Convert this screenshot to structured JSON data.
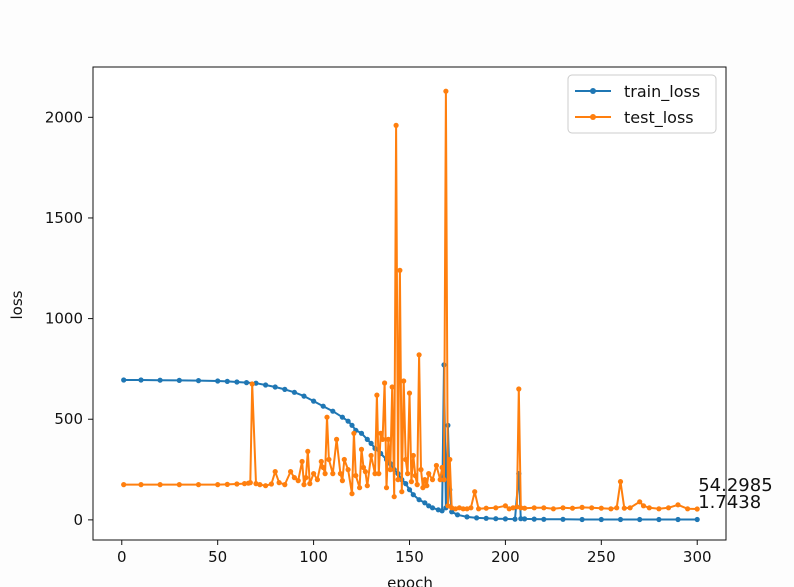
{
  "chart_data": {
    "type": "line",
    "xlabel": "epoch",
    "ylabel": "loss",
    "xlim": [
      -15,
      315
    ],
    "ylim": [
      -100,
      2250
    ],
    "xticks": [
      0,
      50,
      100,
      150,
      200,
      250,
      300
    ],
    "yticks": [
      0,
      500,
      1000,
      1500,
      2000
    ],
    "legend_position": "upper right",
    "series": [
      {
        "name": "train_loss",
        "color": "#1f77b4",
        "end_label": "1.7438",
        "x": [
          1,
          10,
          20,
          30,
          40,
          50,
          55,
          60,
          65,
          70,
          75,
          80,
          85,
          90,
          95,
          100,
          105,
          110,
          115,
          118,
          120,
          122,
          125,
          128,
          130,
          132,
          135,
          138,
          140,
          142,
          144,
          146,
          148,
          150,
          152,
          155,
          158,
          160,
          162,
          165,
          167,
          168,
          169,
          170,
          171,
          172,
          175,
          180,
          185,
          190,
          195,
          200,
          205,
          207,
          208,
          210,
          215,
          220,
          230,
          240,
          250,
          260,
          270,
          280,
          290,
          300
        ],
        "y": [
          695,
          695,
          694,
          693,
          692,
          690,
          688,
          685,
          682,
          679,
          670,
          660,
          648,
          634,
          615,
          590,
          565,
          540,
          510,
          490,
          470,
          445,
          430,
          400,
          380,
          355,
          330,
          300,
          280,
          250,
          230,
          200,
          180,
          150,
          125,
          100,
          85,
          70,
          60,
          50,
          45,
          770,
          60,
          470,
          150,
          40,
          25,
          15,
          10,
          8,
          6,
          5,
          4,
          230,
          6,
          5,
          4,
          3,
          3,
          2,
          2,
          2,
          2,
          2,
          2,
          2
        ]
      },
      {
        "name": "test_loss",
        "color": "#ff7f0e",
        "end_label": "54.2985",
        "x": [
          1,
          10,
          20,
          30,
          40,
          50,
          55,
          60,
          64,
          66,
          67,
          68,
          70,
          72,
          75,
          78,
          80,
          82,
          85,
          88,
          90,
          92,
          94,
          95,
          96,
          97,
          98,
          100,
          102,
          104,
          105,
          106,
          107,
          108,
          110,
          112,
          114,
          115,
          116,
          118,
          120,
          121,
          122,
          124,
          125,
          126,
          127,
          128,
          130,
          132,
          133,
          134,
          135,
          136,
          137,
          138,
          139,
          140,
          141,
          142,
          143,
          144,
          145,
          146,
          147,
          148,
          149,
          150,
          151,
          152,
          153,
          154,
          155,
          156,
          157,
          158,
          159,
          160,
          162,
          164,
          166,
          167,
          168,
          169,
          170,
          171,
          172,
          174,
          176,
          178,
          180,
          182,
          184,
          186,
          190,
          195,
          200,
          202,
          204,
          206,
          207,
          208,
          210,
          215,
          220,
          225,
          230,
          235,
          240,
          245,
          250,
          255,
          258,
          260,
          262,
          265,
          270,
          272,
          275,
          280,
          285,
          290,
          295,
          300
        ],
        "y": [
          175,
          175,
          175,
          175,
          175,
          175,
          176,
          178,
          180,
          182,
          185,
          675,
          180,
          175,
          170,
          178,
          240,
          185,
          175,
          240,
          210,
          195,
          290,
          175,
          210,
          340,
          180,
          230,
          200,
          290,
          260,
          230,
          510,
          300,
          230,
          400,
          230,
          195,
          300,
          250,
          130,
          430,
          220,
          160,
          350,
          260,
          240,
          170,
          320,
          230,
          620,
          230,
          430,
          400,
          680,
          160,
          400,
          250,
          660,
          115,
          1960,
          200,
          1240,
          140,
          690,
          300,
          230,
          630,
          190,
          320,
          220,
          175,
          820,
          250,
          160,
          200,
          170,
          230,
          200,
          270,
          200,
          260,
          200,
          2130,
          70,
          300,
          60,
          55,
          60,
          55,
          55,
          60,
          140,
          55,
          58,
          60,
          70,
          55,
          60,
          65,
          650,
          60,
          58,
          60,
          60,
          55,
          60,
          58,
          62,
          60,
          58,
          55,
          60,
          190,
          58,
          60,
          90,
          70,
          60,
          55,
          60,
          75,
          55,
          54
        ]
      }
    ]
  }
}
